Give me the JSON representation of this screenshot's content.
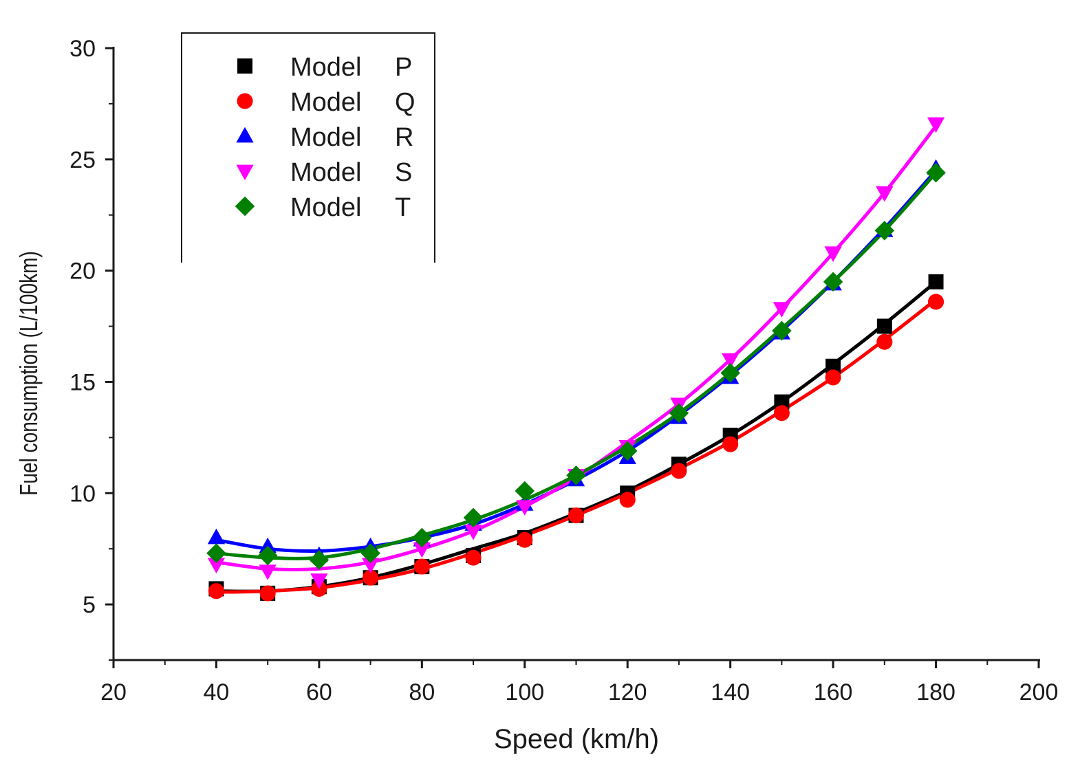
{
  "chart_data": {
    "type": "line",
    "xlabel": "Speed (km/h)",
    "ylabel": "Fuel consumption (L/100km)",
    "xlim": [
      20,
      200
    ],
    "ylim": [
      2.5,
      30
    ],
    "x_ticks": [
      20,
      40,
      60,
      80,
      100,
      120,
      140,
      160,
      180,
      200
    ],
    "y_ticks": [
      5,
      10,
      15,
      20,
      25,
      30
    ],
    "x_tick_labels": [
      "20",
      "40",
      "60",
      "80",
      "100",
      "120",
      "140",
      "160",
      "180",
      "200"
    ],
    "y_tick_labels": [
      "5",
      "10",
      "15",
      "20",
      "25",
      "30"
    ],
    "legend_position": "top-left",
    "x": [
      40,
      50,
      60,
      70,
      80,
      90,
      100,
      110,
      120,
      130,
      140,
      150,
      160,
      170,
      180
    ],
    "series": [
      {
        "model": "Model",
        "letter": "P",
        "color": "#000000",
        "marker": "square",
        "values": [
          5.7,
          5.5,
          5.8,
          6.2,
          6.7,
          7.2,
          8.0,
          9.0,
          10.0,
          11.3,
          12.6,
          14.1,
          15.7,
          17.5,
          19.5
        ],
        "fit": [
          5.6,
          5.6,
          5.8,
          6.2,
          6.8,
          7.5,
          8.2,
          9.1,
          10.1,
          11.3,
          12.6,
          14.1,
          15.8,
          17.6,
          19.5
        ]
      },
      {
        "model": "Model",
        "letter": "Q",
        "color": "#ff0000",
        "marker": "circle",
        "values": [
          5.6,
          5.5,
          5.7,
          6.2,
          6.7,
          7.1,
          7.9,
          9.0,
          9.7,
          11.0,
          12.2,
          13.6,
          15.2,
          16.8,
          18.6
        ],
        "fit": [
          5.55,
          5.6,
          5.75,
          6.1,
          6.6,
          7.3,
          8.1,
          9.0,
          10.0,
          11.1,
          12.3,
          13.7,
          15.2,
          16.9,
          18.7
        ]
      },
      {
        "model": "Model",
        "letter": "R",
        "color": "#0000ff",
        "marker": "triangle-up",
        "values": [
          8.0,
          7.6,
          7.2,
          7.6,
          7.9,
          8.6,
          9.5,
          10.6,
          11.6,
          13.4,
          15.2,
          17.2,
          19.4,
          21.8,
          24.6
        ],
        "fit": [
          7.9,
          7.5,
          7.4,
          7.6,
          8.0,
          8.6,
          9.5,
          10.6,
          11.9,
          13.5,
          15.3,
          17.3,
          19.5,
          21.9,
          24.5
        ]
      },
      {
        "model": "Model",
        "letter": "S",
        "color": "#ff00ff",
        "marker": "triangle-down",
        "values": [
          6.8,
          6.5,
          6.1,
          6.8,
          7.5,
          8.3,
          9.4,
          10.8,
          12.1,
          14.0,
          16.0,
          18.3,
          20.8,
          23.5,
          26.6
        ],
        "fit": [
          6.9,
          6.6,
          6.6,
          6.9,
          7.5,
          8.3,
          9.4,
          10.7,
          12.3,
          14.0,
          16.0,
          18.3,
          20.8,
          23.5,
          26.5
        ]
      },
      {
        "model": "Model",
        "letter": "T",
        "color": "#008000",
        "marker": "diamond",
        "values": [
          7.3,
          7.2,
          7.0,
          7.3,
          8.0,
          8.9,
          10.1,
          10.8,
          11.9,
          13.6,
          15.4,
          17.3,
          19.5,
          21.8,
          24.4
        ],
        "fit": [
          7.3,
          7.1,
          7.1,
          7.5,
          8.1,
          8.8,
          9.7,
          10.8,
          12.1,
          13.6,
          15.4,
          17.4,
          19.5,
          21.8,
          24.4
        ]
      }
    ]
  }
}
